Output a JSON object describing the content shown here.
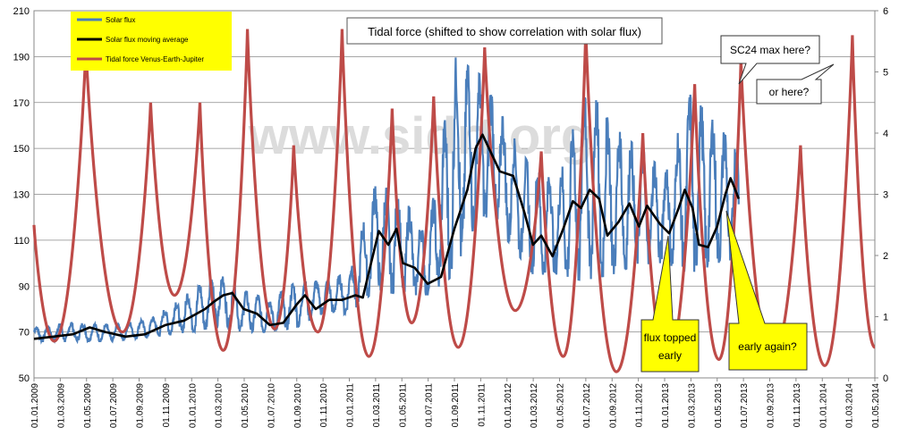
{
  "chart_data": {
    "type": "line",
    "title": "Tidal force (shifted to show correlation with solar flux)",
    "watermark": "www.sidrt.org",
    "y_left": {
      "min": 50,
      "max": 210,
      "ticks": [
        "50",
        "70",
        "90",
        "110",
        "130",
        "150",
        "170",
        "190",
        "210"
      ]
    },
    "y_right": {
      "min": 0,
      "max": 6,
      "ticks": [
        "0",
        "1",
        "2",
        "3",
        "4",
        "5",
        "6"
      ]
    },
    "x": {
      "start": "2009-01-01",
      "end": "2014-05-01",
      "tick_labels": [
        "01.01.2009",
        "01.03.2009",
        "01.05.2009",
        "01.07.2009",
        "01.09.2009",
        "01.11.2009",
        "01.01.2010",
        "01.03.2010",
        "01.05.2010",
        "01.07.2010",
        "01.09.2010",
        "01.11.2010",
        "01.01.2011",
        "01.03.2011",
        "01.05.2011",
        "01.07.2011",
        "01.09.2011",
        "01.11.2011",
        "01.01.2012",
        "01.03.2012",
        "01.05.2012",
        "01.07.2012",
        "01.09.2012",
        "01.11.2012",
        "01.01.2013",
        "01.03.2013",
        "01.05.2013",
        "01.07.2013",
        "01.09.2013",
        "01.11.2013",
        "01.01.2014",
        "01.03.2014",
        "01.05.2014"
      ]
    },
    "legend": [
      {
        "name": "Solar flux",
        "color": "#4a7ebb"
      },
      {
        "name": "Solar flux moving average",
        "color": "#000000"
      },
      {
        "name": "Tidal force Venus-Earth-Jupiter",
        "color": "#be4b48"
      }
    ],
    "series": [
      {
        "name": "Solar flux moving average",
        "axis": "left",
        "points": [
          [
            "2009-01-01",
            67
          ],
          [
            "2009-02-15",
            68
          ],
          [
            "2009-04-01",
            69
          ],
          [
            "2009-05-10",
            72
          ],
          [
            "2009-06-15",
            70
          ],
          [
            "2009-08-01",
            68
          ],
          [
            "2009-09-15",
            69
          ],
          [
            "2009-11-01",
            73
          ],
          [
            "2009-12-15",
            75
          ],
          [
            "2010-02-01",
            80
          ],
          [
            "2010-02-20",
            83
          ],
          [
            "2010-03-15",
            86
          ],
          [
            "2010-04-05",
            87
          ],
          [
            "2010-05-01",
            80
          ],
          [
            "2010-06-01",
            78
          ],
          [
            "2010-07-01",
            73
          ],
          [
            "2010-08-01",
            74
          ],
          [
            "2010-09-01",
            82
          ],
          [
            "2010-09-20",
            86
          ],
          [
            "2010-10-15",
            80
          ],
          [
            "2010-11-15",
            84
          ],
          [
            "2010-12-15",
            84
          ],
          [
            "2011-01-15",
            86
          ],
          [
            "2011-02-01",
            85
          ],
          [
            "2011-02-20",
            100
          ],
          [
            "2011-03-10",
            114
          ],
          [
            "2011-04-01",
            108
          ],
          [
            "2011-04-20",
            115
          ],
          [
            "2011-05-05",
            100
          ],
          [
            "2011-06-01",
            98
          ],
          [
            "2011-07-01",
            91
          ],
          [
            "2011-08-01",
            94
          ],
          [
            "2011-09-01",
            115
          ],
          [
            "2011-10-01",
            132
          ],
          [
            "2011-10-20",
            150
          ],
          [
            "2011-11-05",
            156
          ],
          [
            "2011-11-25",
            148
          ],
          [
            "2011-12-15",
            140
          ],
          [
            "2012-01-15",
            138
          ],
          [
            "2012-02-10",
            122
          ],
          [
            "2012-03-01",
            108
          ],
          [
            "2012-03-20",
            112
          ],
          [
            "2012-04-15",
            103
          ],
          [
            "2012-05-10",
            115
          ],
          [
            "2012-06-01",
            127
          ],
          [
            "2012-06-20",
            124
          ],
          [
            "2012-07-10",
            132
          ],
          [
            "2012-08-01",
            128
          ],
          [
            "2012-08-20",
            112
          ],
          [
            "2012-09-15",
            118
          ],
          [
            "2012-10-10",
            126
          ],
          [
            "2012-11-01",
            116
          ],
          [
            "2012-11-20",
            125
          ],
          [
            "2012-12-20",
            117
          ],
          [
            "2013-01-10",
            113
          ],
          [
            "2013-02-01",
            124
          ],
          [
            "2013-02-15",
            132
          ],
          [
            "2013-03-05",
            124
          ],
          [
            "2013-03-20",
            108
          ],
          [
            "2013-04-10",
            107
          ],
          [
            "2013-05-01",
            116
          ],
          [
            "2013-05-20",
            130
          ],
          [
            "2013-06-01",
            137
          ],
          [
            "2013-06-10",
            133
          ],
          [
            "2013-06-20",
            128
          ]
        ]
      },
      {
        "name": "Tidal force Venus-Earth-Jupiter",
        "axis": "right",
        "peaks": [
          [
            "2009-01-01",
            2.5
          ],
          [
            "2009-02-17",
            0.6
          ],
          [
            "2009-05-01",
            5.4
          ],
          [
            "2009-07-25",
            0.75
          ],
          [
            "2009-09-28",
            4.5
          ],
          [
            "2009-11-22",
            1.35
          ],
          [
            "2010-01-20",
            4.5
          ],
          [
            "2010-03-15",
            0.45
          ],
          [
            "2010-05-10",
            5.7
          ],
          [
            "2010-07-12",
            0.8
          ],
          [
            "2010-08-25",
            3.8
          ],
          [
            "2010-10-20",
            0.75
          ],
          [
            "2010-12-15",
            5.7
          ],
          [
            "2011-02-15",
            0.35
          ],
          [
            "2011-04-10",
            4.4
          ],
          [
            "2011-05-25",
            0.9
          ],
          [
            "2011-07-15",
            4.6
          ],
          [
            "2011-09-10",
            0.5
          ],
          [
            "2011-11-10",
            5.4
          ],
          [
            "2012-01-20",
            1.1
          ],
          [
            "2012-03-20",
            3.7
          ],
          [
            "2012-05-10",
            0.35
          ],
          [
            "2012-07-01",
            5.7
          ],
          [
            "2012-09-10",
            0.1
          ],
          [
            "2012-11-10",
            4.0
          ],
          [
            "2013-01-05",
            0.2
          ],
          [
            "2013-03-10",
            4.8
          ],
          [
            "2013-05-05",
            0.3
          ],
          [
            "2013-06-25",
            5.2
          ],
          [
            "2013-09-05",
            0.3
          ],
          [
            "2013-11-10",
            3.8
          ],
          [
            "2014-01-05",
            0.2
          ],
          [
            "2014-03-10",
            5.6
          ],
          [
            "2014-05-01",
            0.5
          ]
        ]
      },
      {
        "name": "Solar flux",
        "axis": "left",
        "envelope": [
          [
            "2009-01-01",
            66,
            72
          ],
          [
            "2009-04-01",
            66,
            74
          ],
          [
            "2009-07-01",
            66,
            73
          ],
          [
            "2009-10-01",
            68,
            76
          ],
          [
            "2010-01-01",
            70,
            88
          ],
          [
            "2010-03-01",
            72,
            96
          ],
          [
            "2010-05-01",
            70,
            88
          ],
          [
            "2010-07-01",
            70,
            84
          ],
          [
            "2010-09-01",
            72,
            92
          ],
          [
            "2010-11-01",
            78,
            92
          ],
          [
            "2011-01-01",
            78,
            96
          ],
          [
            "2011-03-01",
            88,
            135
          ],
          [
            "2011-05-01",
            86,
            130
          ],
          [
            "2011-07-01",
            86,
            112
          ],
          [
            "2011-09-01",
            95,
            190
          ],
          [
            "2011-11-01",
            120,
            182
          ],
          [
            "2012-01-01",
            110,
            160
          ],
          [
            "2012-03-01",
            95,
            140
          ],
          [
            "2012-05-01",
            95,
            138
          ],
          [
            "2012-07-01",
            92,
            178
          ],
          [
            "2012-09-01",
            95,
            160
          ],
          [
            "2012-11-01",
            100,
            150
          ],
          [
            "2013-01-01",
            100,
            140
          ],
          [
            "2013-03-01",
            95,
            174
          ],
          [
            "2013-05-01",
            100,
            160
          ],
          [
            "2013-06-20",
            102,
            150
          ]
        ]
      }
    ],
    "annotations": [
      {
        "text": "SC24 max here?",
        "kind": "callout"
      },
      {
        "text": "or here?",
        "kind": "callout"
      },
      {
        "text": "flux topped early",
        "lines": [
          "flux topped",
          "early"
        ],
        "kind": "yellow-callout"
      },
      {
        "text": "early again?",
        "kind": "yellow-callout"
      }
    ]
  }
}
